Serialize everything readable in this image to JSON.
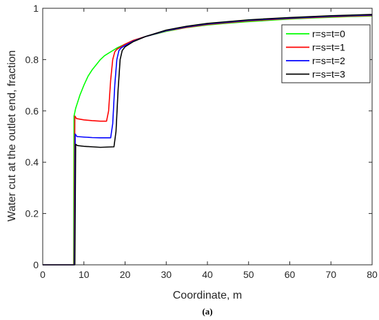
{
  "caption": "(a)",
  "chart_data": {
    "type": "line",
    "title": "",
    "xlabel": "Coordinate, m",
    "ylabel": "Water cut at the outlet end, fraction",
    "xlim": [
      0,
      80
    ],
    "ylim": [
      0,
      1
    ],
    "xticks": [
      0,
      10,
      20,
      30,
      40,
      50,
      60,
      70,
      80
    ],
    "yticks": [
      0,
      0.2,
      0.4,
      0.6,
      0.8,
      1
    ],
    "ytick_labels": [
      "0",
      "0.2",
      "0.4",
      "0.6",
      "0.8",
      "1"
    ],
    "grid": false,
    "legend_position": "top-right",
    "series": [
      {
        "name": "r=s=t=0",
        "color": "#00ff00",
        "points": [
          [
            0,
            0
          ],
          [
            7.5,
            0
          ],
          [
            7.6,
            0.58
          ],
          [
            8,
            0.61
          ],
          [
            9,
            0.66
          ],
          [
            10,
            0.7
          ],
          [
            11,
            0.735
          ],
          [
            12,
            0.76
          ],
          [
            13,
            0.78
          ],
          [
            14,
            0.8
          ],
          [
            15,
            0.815
          ],
          [
            16,
            0.825
          ],
          [
            17,
            0.835
          ],
          [
            18,
            0.845
          ],
          [
            20,
            0.86
          ],
          [
            22,
            0.875
          ],
          [
            25,
            0.89
          ],
          [
            30,
            0.91
          ],
          [
            35,
            0.925
          ],
          [
            40,
            0.935
          ],
          [
            45,
            0.942
          ],
          [
            50,
            0.948
          ],
          [
            55,
            0.953
          ],
          [
            60,
            0.958
          ],
          [
            65,
            0.962
          ],
          [
            70,
            0.965
          ],
          [
            75,
            0.968
          ],
          [
            80,
            0.97
          ]
        ]
      },
      {
        "name": "r=s=t=1",
        "color": "#ff0000",
        "points": [
          [
            0,
            0
          ],
          [
            7.6,
            0
          ],
          [
            7.8,
            0.58
          ],
          [
            8.2,
            0.57
          ],
          [
            10,
            0.565
          ],
          [
            12,
            0.562
          ],
          [
            14,
            0.56
          ],
          [
            15.5,
            0.56
          ],
          [
            16,
            0.6
          ],
          [
            16.5,
            0.72
          ],
          [
            17,
            0.8
          ],
          [
            17.5,
            0.83
          ],
          [
            18,
            0.84
          ],
          [
            19,
            0.85
          ],
          [
            20,
            0.86
          ],
          [
            22,
            0.875
          ],
          [
            25,
            0.89
          ],
          [
            30,
            0.912
          ],
          [
            35,
            0.926
          ],
          [
            40,
            0.937
          ],
          [
            50,
            0.951
          ],
          [
            60,
            0.96
          ],
          [
            70,
            0.967
          ],
          [
            80,
            0.972
          ]
        ]
      },
      {
        "name": "r=s=t=2",
        "color": "#0000ff",
        "points": [
          [
            0,
            0
          ],
          [
            7.7,
            0
          ],
          [
            7.9,
            0.51
          ],
          [
            8.3,
            0.5
          ],
          [
            10,
            0.498
          ],
          [
            12,
            0.496
          ],
          [
            14,
            0.495
          ],
          [
            16.5,
            0.495
          ],
          [
            17,
            0.55
          ],
          [
            17.5,
            0.7
          ],
          [
            18,
            0.8
          ],
          [
            18.5,
            0.835
          ],
          [
            19,
            0.845
          ],
          [
            20,
            0.855
          ],
          [
            22,
            0.872
          ],
          [
            25,
            0.89
          ],
          [
            30,
            0.913
          ],
          [
            35,
            0.928
          ],
          [
            40,
            0.939
          ],
          [
            50,
            0.953
          ],
          [
            60,
            0.962
          ],
          [
            70,
            0.969
          ],
          [
            80,
            0.974
          ]
        ]
      },
      {
        "name": "r=s=t=3",
        "color": "#000000",
        "points": [
          [
            0,
            0
          ],
          [
            7.8,
            0
          ],
          [
            8,
            0.47
          ],
          [
            8.4,
            0.465
          ],
          [
            10,
            0.462
          ],
          [
            12,
            0.46
          ],
          [
            14,
            0.458
          ],
          [
            17.3,
            0.46
          ],
          [
            17.8,
            0.52
          ],
          [
            18.3,
            0.68
          ],
          [
            18.8,
            0.8
          ],
          [
            19.3,
            0.835
          ],
          [
            20,
            0.85
          ],
          [
            22,
            0.87
          ],
          [
            25,
            0.89
          ],
          [
            30,
            0.915
          ],
          [
            35,
            0.93
          ],
          [
            40,
            0.941
          ],
          [
            50,
            0.955
          ],
          [
            60,
            0.964
          ],
          [
            70,
            0.971
          ],
          [
            80,
            0.976
          ]
        ]
      }
    ]
  }
}
